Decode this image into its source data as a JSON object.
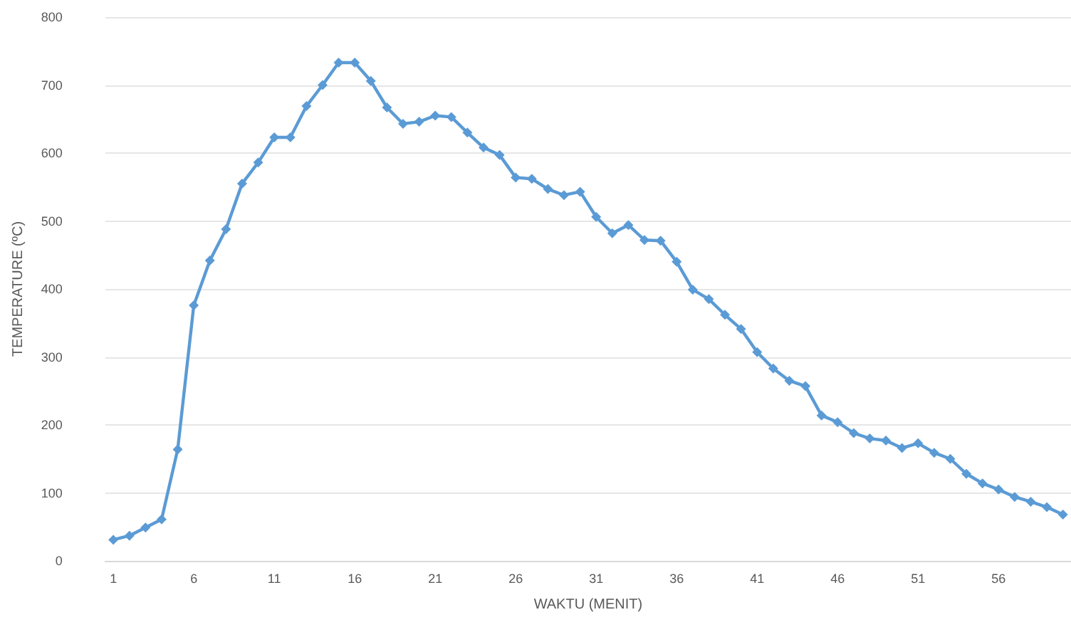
{
  "chart_data": {
    "type": "line",
    "xlabel": "WAKTU (MENIT)",
    "ylabel": "TEMPERATURE (ºC)",
    "x": [
      1,
      2,
      3,
      4,
      5,
      6,
      7,
      8,
      9,
      10,
      11,
      12,
      13,
      14,
      15,
      16,
      17,
      18,
      19,
      20,
      21,
      22,
      23,
      24,
      25,
      26,
      27,
      28,
      29,
      30,
      31,
      32,
      33,
      34,
      35,
      36,
      37,
      38,
      39,
      40,
      41,
      42,
      43,
      44,
      45,
      46,
      47,
      48,
      49,
      50,
      51,
      52,
      53,
      54,
      55,
      56,
      57,
      58,
      59,
      60
    ],
    "series": [
      {
        "color": "#5b9bd5",
        "values": [
          31,
          37,
          49,
          61,
          164,
          376,
          442,
          488,
          555,
          586,
          623,
          623,
          669,
          700,
          733,
          733,
          706,
          667,
          643,
          646,
          655,
          653,
          630,
          608,
          597,
          564,
          562,
          547,
          538,
          543,
          506,
          482,
          494,
          472,
          471,
          440,
          399,
          385,
          362,
          341,
          307,
          283,
          265,
          257,
          214,
          204,
          188,
          180,
          177,
          166,
          173,
          159,
          150,
          128,
          114,
          105,
          94,
          87,
          79,
          68
        ]
      }
    ],
    "xlim": [
      0.5,
      60.5
    ],
    "xticks": [
      1,
      6,
      11,
      16,
      21,
      26,
      31,
      36,
      41,
      46,
      51,
      56
    ],
    "ylim": [
      0,
      800
    ],
    "yticks": [
      0,
      100,
      200,
      300,
      400,
      500,
      600,
      700,
      800
    ],
    "grid": "y",
    "marker": "diamond",
    "line_style": "solid"
  }
}
